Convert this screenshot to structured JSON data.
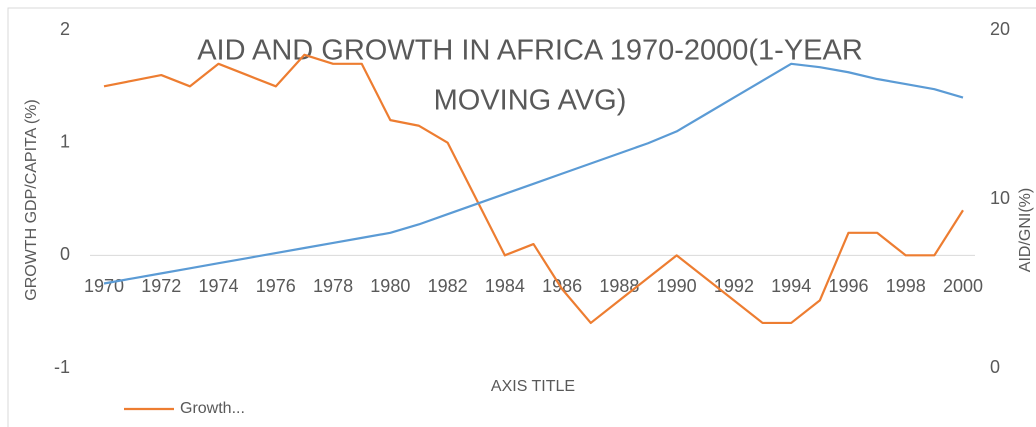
{
  "chart_data": {
    "type": "line",
    "title": [
      "AID AND GROWTH IN AFRICA 1970-2000(1-YEAR",
      "MOVING AVG)"
    ],
    "x_label": "AXIS TITLE",
    "y_label": "GROWTH GDP/CAPITA (%)",
    "y2_label": "AID/GNI(%)",
    "x": [
      1970,
      1971,
      1972,
      1973,
      1974,
      1975,
      1976,
      1977,
      1978,
      1979,
      1980,
      1981,
      1982,
      1983,
      1984,
      1985,
      1986,
      1987,
      1988,
      1989,
      1990,
      1991,
      1992,
      1993,
      1994,
      1995,
      1996,
      1997,
      1998,
      1999,
      2000
    ],
    "xlim": [
      1970,
      2000
    ],
    "xticks": [
      1970,
      1972,
      1974,
      1976,
      1978,
      1980,
      1982,
      1984,
      1986,
      1988,
      1990,
      1992,
      1994,
      1996,
      1998,
      2000
    ],
    "ylim": [
      -1,
      2
    ],
    "yticks": [
      -1,
      0,
      1,
      2
    ],
    "y2lim": [
      0,
      20
    ],
    "y2ticks": [
      0,
      10,
      20
    ],
    "grid": false,
    "legend": "bottom-left",
    "series": [
      {
        "name": "Growth...",
        "color": "#ed7d31",
        "values": [
          1.5,
          1.55,
          1.6,
          1.5,
          1.7,
          1.6,
          1.5,
          1.78,
          1.7,
          1.7,
          1.2,
          1.15,
          1.0,
          0.5,
          0.0,
          0.1,
          -0.3,
          -0.6,
          -0.4,
          -0.2,
          0.0,
          -0.2,
          -0.4,
          -0.6,
          -0.6,
          -0.4,
          0.2,
          0.2,
          0.0,
          0.0,
          0.4
        ]
      },
      {
        "color": "#5b9bd5",
        "axis": "y2",
        "values": [
          5.0,
          5.3,
          5.6,
          5.9,
          6.2,
          6.5,
          6.8,
          7.1,
          7.4,
          7.7,
          8.0,
          8.5,
          9.1,
          9.7,
          10.3,
          10.9,
          11.5,
          12.1,
          12.7,
          13.3,
          14.0,
          15.0,
          16.0,
          17.0,
          18.0,
          17.8,
          17.5,
          17.1,
          16.8,
          16.5,
          16.0
        ]
      }
    ]
  }
}
